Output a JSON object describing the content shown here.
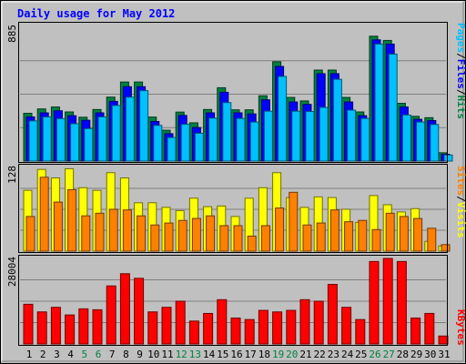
{
  "chart_data": [
    {
      "type": "bar",
      "title": "Daily usage for May 2012",
      "categories": [
        "1",
        "2",
        "3",
        "4",
        "5",
        "6",
        "7",
        "8",
        "9",
        "10",
        "11",
        "12",
        "13",
        "14",
        "15",
        "16",
        "17",
        "18",
        "19",
        "20",
        "21",
        "22",
        "23",
        "24",
        "25",
        "26",
        "27",
        "28",
        "29",
        "30",
        "31"
      ],
      "weekend_days": [
        "5",
        "6",
        "12",
        "13",
        "19",
        "20",
        "26",
        "27"
      ],
      "ymax_label": "885",
      "ylim": [
        0,
        885
      ],
      "label_parts": [
        "Pages",
        "Files",
        "Hits"
      ],
      "series": [
        {
          "name": "Hits",
          "color": "#008040",
          "values": [
            316,
            345,
            358,
            325,
            290,
            341,
            423,
            523,
            523,
            291,
            204,
            324,
            253,
            341,
            485,
            339,
            339,
            432,
            657,
            421,
            398,
            602,
            602,
            421,
            325,
            826,
            798,
            382,
            296,
            287,
            55
          ]
        },
        {
          "name": "Files",
          "color": "#0000ff",
          "values": [
            292,
            319,
            333,
            300,
            270,
            319,
            395,
            492,
            492,
            262,
            181,
            302,
            222,
            319,
            455,
            319,
            312,
            405,
            626,
            391,
            375,
            578,
            578,
            391,
            300,
            802,
            774,
            358,
            276,
            268,
            45
          ]
        },
        {
          "name": "Pages",
          "color": "#00c0ff",
          "values": [
            266,
            292,
            281,
            247,
            215,
            292,
            368,
            423,
            466,
            236,
            156,
            243,
            184,
            284,
            387,
            282,
            258,
            330,
            560,
            330,
            328,
            355,
            541,
            337,
            282,
            774,
            708,
            305,
            258,
            242,
            40
          ]
        }
      ]
    },
    {
      "type": "bar",
      "ymax_label": "128",
      "ylim": [
        0,
        128
      ],
      "label_parts": [
        "Sites",
        "Visits"
      ],
      "series": [
        {
          "name": "Visits",
          "color": "#ffff00",
          "values": [
            93,
            125,
            112,
            126,
            97,
            93,
            120,
            112,
            74,
            74,
            67,
            62,
            81,
            68,
            69,
            53,
            81,
            97,
            120,
            82,
            67,
            83,
            82,
            64,
            44,
            85,
            71,
            60,
            65,
            15,
            8
          ]
        },
        {
          "name": "Sites",
          "color": "#ff8000",
          "values": [
            53,
            113,
            75,
            94,
            54,
            58,
            64,
            63,
            54,
            40,
            43,
            47,
            50,
            54,
            39,
            39,
            23,
            39,
            66,
            90,
            40,
            43,
            63,
            45,
            47,
            33,
            58,
            53,
            50,
            35,
            10
          ]
        }
      ]
    },
    {
      "type": "bar",
      "ymax_label": "28004",
      "ylim": [
        0,
        28004
      ],
      "label_parts": [
        "KBytes"
      ],
      "series": [
        {
          "name": "KBytes",
          "color": "#ff0000",
          "values": [
            13000,
            10500,
            12000,
            9500,
            11500,
            11200,
            19000,
            23000,
            21500,
            10500,
            12000,
            14000,
            7500,
            10000,
            14500,
            8500,
            8000,
            11000,
            10500,
            11000,
            14500,
            14000,
            19500,
            12000,
            8000,
            27000,
            28004,
            27000,
            8500,
            10000,
            2600
          ]
        }
      ]
    }
  ]
}
